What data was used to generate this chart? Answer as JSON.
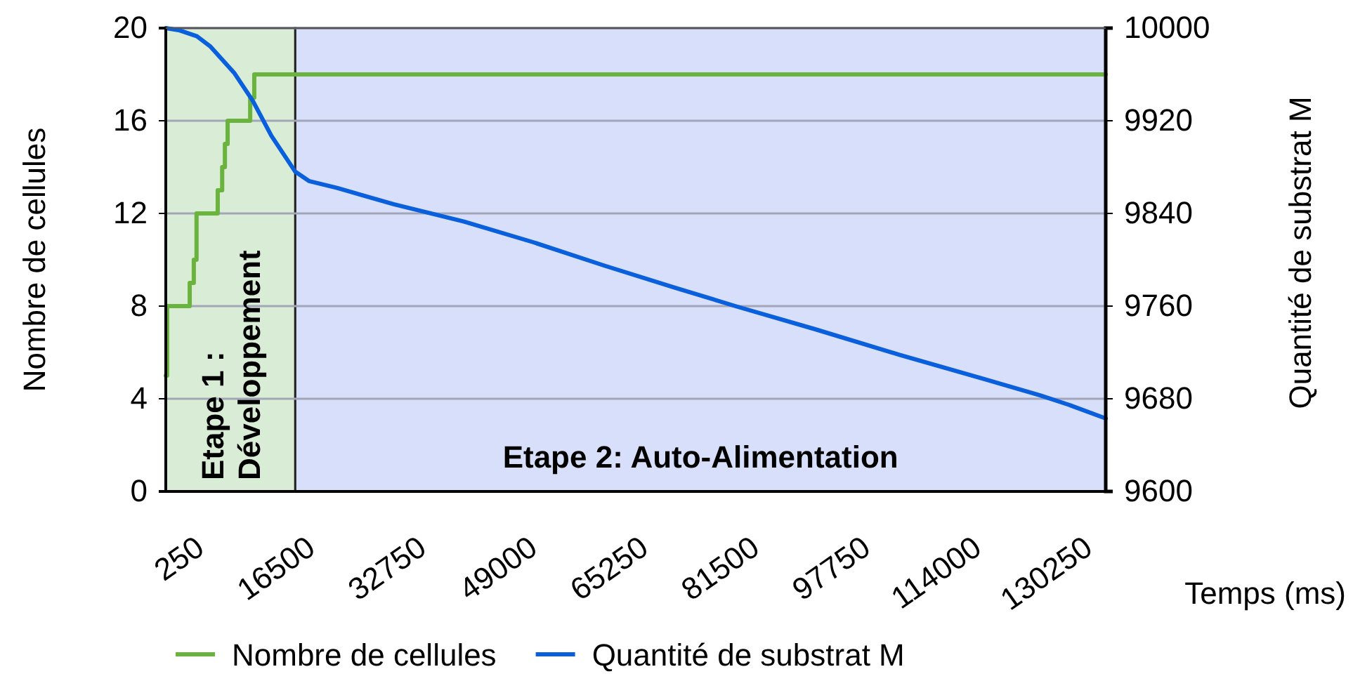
{
  "chart_data": {
    "type": "line",
    "xlabel": "Temps (ms)",
    "ylabel": "Nombre de cellules",
    "y2label": "Quantité de substrat M",
    "xlim": [
      250,
      137800
    ],
    "xticks": [
      250,
      16500,
      32750,
      49000,
      65250,
      81500,
      97750,
      114000,
      130250
    ],
    "ylim": [
      0,
      20
    ],
    "yticks": [
      0,
      4,
      8,
      12,
      16,
      20
    ],
    "y2lim": [
      9600,
      10000
    ],
    "y2ticks": [
      9600,
      9680,
      9760,
      9840,
      9920,
      10000
    ],
    "grid": "y",
    "legend": "bottom",
    "bands": [
      {
        "axis": "x",
        "from": 250,
        "to": 19200,
        "label": "Etape 1 :\nDéveloppement",
        "color": "#d9ecd5"
      },
      {
        "axis": "x",
        "from": 19200,
        "to": 137800,
        "label": "Etape 2: Auto-Alimentation",
        "color": "#d8dffa"
      }
    ],
    "series": [
      {
        "name": "Nombre de cellules",
        "type": "step",
        "color": "#6ab43e",
        "x": [
          250,
          450,
          3750,
          4350,
          4750,
          7850,
          8500,
          8900,
          9300,
          12600,
          13200,
          137800
        ],
        "values": [
          5,
          8,
          9,
          10,
          12,
          13,
          14,
          15,
          16,
          17,
          18,
          18
        ]
      },
      {
        "name": "Quantité de substrat M",
        "axis": "y2",
        "color": "#0a5fdc",
        "x": [
          250,
          2300,
          4800,
          6800,
          10300,
          13000,
          15700,
          19200,
          21200,
          25300,
          33600,
          43900,
          54100,
          64400,
          74700,
          83600,
          95300,
          107600,
          120000,
          128200,
          132300,
          137800
        ],
        "values": [
          10000,
          9998,
          9993,
          9984,
          9961,
          9937,
          9907,
          9876,
          9868,
          9862,
          9848,
          9833,
          9815,
          9795,
          9776,
          9760,
          9740,
          9718,
          9697,
          9683,
          9675,
          9663
        ]
      }
    ]
  }
}
